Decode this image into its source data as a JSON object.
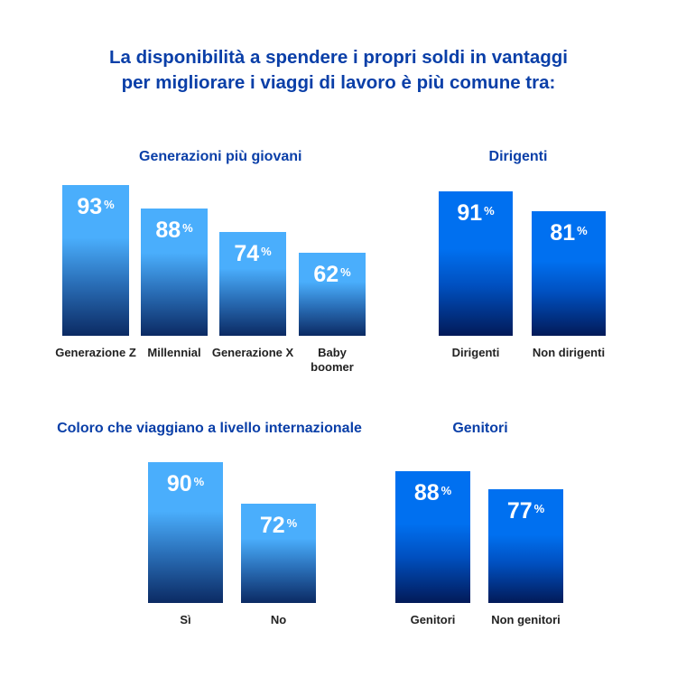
{
  "title_line1": "La disponibilità a spendere i propri soldi in vantaggi",
  "title_line2": "per migliorare i viaggi di lavoro è più comune tra:",
  "colors": {
    "title": "#0a3fa8",
    "light_bar_top": "#4aaefc",
    "dark_bar_top": "#0070f0",
    "bar_bottom": "#0b2a63"
  },
  "chart_data": [
    {
      "type": "bar",
      "title": "Generazioni più giovani",
      "categories": [
        "Generazione Z",
        "Millennial",
        "Generazione X",
        "Baby boomer"
      ],
      "values": [
        93,
        88,
        74,
        62
      ],
      "unit": "%",
      "style": "light"
    },
    {
      "type": "bar",
      "title": "Dirigenti",
      "categories": [
        "Dirigenti",
        "Non dirigenti"
      ],
      "values": [
        91,
        81
      ],
      "unit": "%",
      "style": "dark"
    },
    {
      "type": "bar",
      "title": "Coloro che viaggiano a livello internazionale",
      "categories": [
        "Sì",
        "No"
      ],
      "values": [
        90,
        72
      ],
      "unit": "%",
      "style": "light"
    },
    {
      "type": "bar",
      "title": "Genitori",
      "categories": [
        "Genitori",
        "Non genitori"
      ],
      "values": [
        88,
        77
      ],
      "unit": "%",
      "style": "dark"
    }
  ]
}
